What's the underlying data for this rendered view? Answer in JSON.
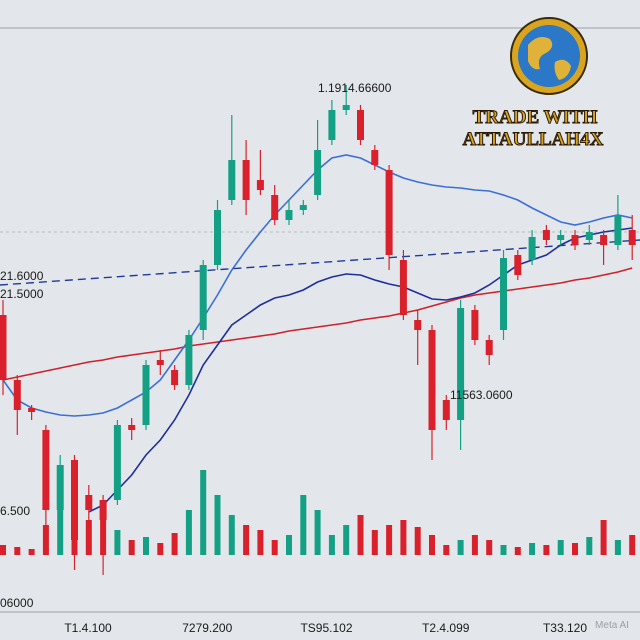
{
  "chart_data": {
    "type": "candlestick",
    "ylim": [
      0,
      640
    ],
    "volume_ylim": [
      0,
      555
    ],
    "up_color": "#14a085",
    "down_color": "#d9202b",
    "open": [
      325,
      260,
      232,
      210,
      130,
      180,
      145,
      140,
      140,
      215,
      215,
      280,
      270,
      255,
      310,
      375,
      440,
      480,
      460,
      445,
      420,
      430,
      445,
      500,
      530,
      530,
      490,
      470,
      380,
      320,
      310,
      240,
      220,
      330,
      300,
      310,
      385,
      380,
      410,
      400,
      405,
      400,
      405,
      395,
      410
    ],
    "high": [
      340,
      265,
      235,
      215,
      185,
      185,
      155,
      145,
      220,
      222,
      280,
      290,
      275,
      310,
      380,
      440,
      525,
      500,
      490,
      455,
      440,
      440,
      520,
      540,
      555,
      535,
      495,
      475,
      390,
      330,
      315,
      245,
      340,
      335,
      305,
      390,
      390,
      410,
      415,
      410,
      410,
      415,
      410,
      445,
      425
    ],
    "low": [
      245,
      205,
      220,
      95,
      120,
      70,
      120,
      65,
      135,
      200,
      210,
      265,
      250,
      250,
      300,
      370,
      435,
      425,
      445,
      415,
      415,
      425,
      440,
      495,
      525,
      495,
      470,
      370,
      320,
      275,
      180,
      210,
      190,
      295,
      275,
      300,
      360,
      375,
      395,
      395,
      390,
      395,
      375,
      390,
      380
    ],
    "close": [
      260,
      230,
      228,
      130,
      175,
      100,
      130,
      120,
      215,
      210,
      275,
      275,
      255,
      305,
      375,
      430,
      480,
      440,
      450,
      420,
      430,
      435,
      490,
      530,
      535,
      500,
      475,
      385,
      325,
      310,
      210,
      220,
      332,
      300,
      285,
      382,
      365,
      403,
      400,
      405,
      395,
      408,
      395,
      425,
      395
    ],
    "volumes": [
      10,
      8,
      6,
      30,
      45,
      55,
      35,
      35,
      25,
      15,
      18,
      12,
      22,
      45,
      85,
      60,
      40,
      30,
      25,
      15,
      20,
      60,
      45,
      20,
      30,
      40,
      25,
      30,
      35,
      28,
      20,
      10,
      15,
      20,
      15,
      10,
      8,
      12,
      10,
      15,
      12,
      18,
      35,
      15,
      20
    ],
    "series": [
      {
        "color": "#d0202a",
        "values": [
          260,
          263,
          266,
          269,
          272,
          275,
          278,
          280,
          283,
          285,
          287,
          289,
          291,
          294,
          296,
          298,
          300,
          302,
          304,
          306,
          309,
          311,
          313,
          315,
          317,
          320,
          322,
          324,
          327,
          330,
          334,
          338,
          342,
          345,
          347,
          349,
          351,
          353,
          355,
          357,
          360,
          362,
          365,
          368,
          372
        ]
      },
      {
        "color": "#1f2f9a",
        "values": [
          null,
          null,
          null,
          null,
          null,
          null,
          128,
          135,
          150,
          165,
          185,
          200,
          220,
          245,
          275,
          295,
          315,
          325,
          335,
          342,
          345,
          350,
          358,
          363,
          366,
          365,
          360,
          356,
          353,
          347,
          341,
          340,
          343,
          347,
          355,
          365,
          375,
          380,
          385,
          395,
          402,
          405,
          408,
          410,
          412
        ]
      },
      {
        "color": "#3b6fd6",
        "values": [
          260,
          240,
          232,
          228,
          225,
          224,
          225,
          227,
          232,
          240,
          248,
          260,
          280,
          300,
          322,
          345,
          370,
          390,
          408,
          425,
          440,
          455,
          470,
          482,
          485,
          482,
          475,
          468,
          462,
          458,
          455,
          453,
          452,
          450,
          449,
          445,
          440,
          432,
          425,
          418,
          415,
          418,
          422,
          425,
          422
        ]
      }
    ],
    "trend_line": [
      355,
      400
    ],
    "annotations": [
      "1.1914.66600",
      "21.6000",
      "21.5000",
      "11563.0600",
      "6.500",
      "06000"
    ],
    "x_labels": [
      "T1.4.100",
      "7279.200",
      "TS95.102",
      "T2.4.099",
      "T33.120"
    ]
  },
  "logo": {
    "line1": "TRADE WITH",
    "line2": "ATTAULLAH4X"
  },
  "watermark": "Meta AI"
}
